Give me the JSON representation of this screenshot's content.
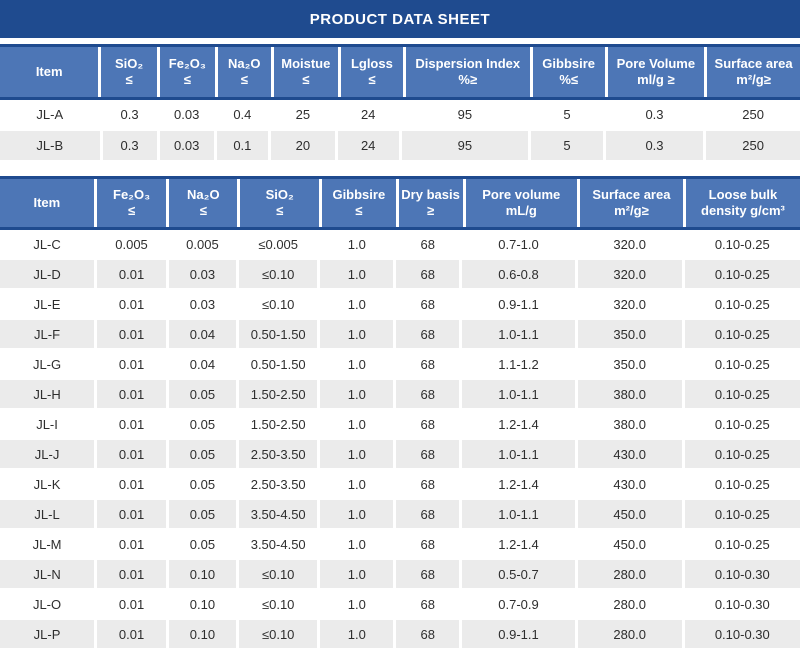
{
  "page_title": "PRODUCT DATA SHEET",
  "colors": {
    "title_bar": "#1f4b8f",
    "header_cell": "#4d76b6",
    "header_border": "#1f4b8f",
    "alt_row": "#ebebeb",
    "header_text": "#ffffff",
    "body_text": "#2e2e2e"
  },
  "tables": [
    {
      "name": "spec-table-1",
      "headers": [
        [
          "Item"
        ],
        [
          "SiO₂",
          "≤"
        ],
        [
          "Fe₂O₃",
          "≤"
        ],
        [
          "Na₂O",
          "≤"
        ],
        [
          "Moistue",
          "≤"
        ],
        [
          "Lgloss",
          "≤"
        ],
        [
          "Dispersion Index",
          "%≥"
        ],
        [
          "Gibbsire",
          "%≤"
        ],
        [
          "Pore Volume",
          "ml/g ≥"
        ],
        [
          "Surface area",
          "m²/g≥"
        ]
      ],
      "rows": [
        [
          "JL-A",
          "0.3",
          "0.03",
          "0.4",
          "25",
          "24",
          "95",
          "5",
          "0.3",
          "250"
        ],
        [
          "JL-B",
          "0.3",
          "0.03",
          "0.1",
          "20",
          "24",
          "95",
          "5",
          "0.3",
          "250"
        ]
      ]
    },
    {
      "name": "spec-table-2",
      "headers": [
        [
          "Item"
        ],
        [
          "Fe₂O₃",
          "≤"
        ],
        [
          "Na₂O",
          "≤"
        ],
        [
          "SiO₂",
          "≤"
        ],
        [
          "Gibbsire",
          "≤"
        ],
        [
          "Dry basis",
          "≥"
        ],
        [
          "Pore volume",
          "mL/g"
        ],
        [
          "Surface area",
          "m²/g≥"
        ],
        [
          "Loose bulk",
          "density g/cm³"
        ]
      ],
      "rows": [
        [
          "JL-C",
          "0.005",
          "0.005",
          "≤0.005",
          "1.0",
          "68",
          "0.7-1.0",
          "320.0",
          "0.10-0.25"
        ],
        [
          "JL-D",
          "0.01",
          "0.03",
          "≤0.10",
          "1.0",
          "68",
          "0.6-0.8",
          "320.0",
          "0.10-0.25"
        ],
        [
          "JL-E",
          "0.01",
          "0.03",
          "≤0.10",
          "1.0",
          "68",
          "0.9-1.1",
          "320.0",
          "0.10-0.25"
        ],
        [
          "JL-F",
          "0.01",
          "0.04",
          "0.50-1.50",
          "1.0",
          "68",
          "1.0-1.1",
          "350.0",
          "0.10-0.25"
        ],
        [
          "JL-G",
          "0.01",
          "0.04",
          "0.50-1.50",
          "1.0",
          "68",
          "1.1-1.2",
          "350.0",
          "0.10-0.25"
        ],
        [
          "JL-H",
          "0.01",
          "0.05",
          "1.50-2.50",
          "1.0",
          "68",
          "1.0-1.1",
          "380.0",
          "0.10-0.25"
        ],
        [
          "JL-I",
          "0.01",
          "0.05",
          "1.50-2.50",
          "1.0",
          "68",
          "1.2-1.4",
          "380.0",
          "0.10-0.25"
        ],
        [
          "JL-J",
          "0.01",
          "0.05",
          "2.50-3.50",
          "1.0",
          "68",
          "1.0-1.1",
          "430.0",
          "0.10-0.25"
        ],
        [
          "JL-K",
          "0.01",
          "0.05",
          "2.50-3.50",
          "1.0",
          "68",
          "1.2-1.4",
          "430.0",
          "0.10-0.25"
        ],
        [
          "JL-L",
          "0.01",
          "0.05",
          "3.50-4.50",
          "1.0",
          "68",
          "1.0-1.1",
          "450.0",
          "0.10-0.25"
        ],
        [
          "JL-M",
          "0.01",
          "0.05",
          "3.50-4.50",
          "1.0",
          "68",
          "1.2-1.4",
          "450.0",
          "0.10-0.25"
        ],
        [
          "JL-N",
          "0.01",
          "0.10",
          "≤0.10",
          "1.0",
          "68",
          "0.5-0.7",
          "280.0",
          "0.10-0.30"
        ],
        [
          "JL-O",
          "0.01",
          "0.10",
          "≤0.10",
          "1.0",
          "68",
          "0.7-0.9",
          "280.0",
          "0.10-0.30"
        ],
        [
          "JL-P",
          "0.01",
          "0.10",
          "≤0.10",
          "1.0",
          "68",
          "0.9-1.1",
          "280.0",
          "0.10-0.30"
        ]
      ]
    }
  ]
}
